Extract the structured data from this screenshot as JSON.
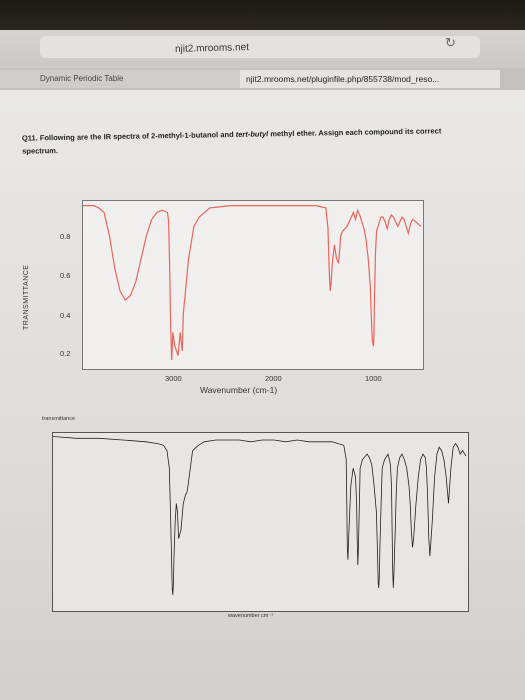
{
  "browser": {
    "host": "njit2.mrooms.net",
    "tabs": [
      {
        "label": "Dynamic Periodic Table"
      },
      {
        "label": "njit2.mrooms.net/pluginfile.php/855738/mod_reso..."
      }
    ]
  },
  "question": {
    "prefix": "Q11. Following are the IR spectra of ",
    "compound1": "2-methyl-1-butanol",
    "middle": " and ",
    "compound2": "tert-butyl",
    "suffix": " methyl ether. Assign each compound its correct spectrum."
  },
  "chart_data": [
    {
      "type": "line",
      "ylabel": "TRANSMITTANCE",
      "xlabel": "Wavenumber (cm-1)",
      "yticks": [
        "0.8",
        "0.6",
        "0.4",
        "0.2"
      ],
      "xticks": [
        "3000",
        "2000",
        "1000"
      ],
      "xlim": [
        3800,
        600
      ],
      "ylim": [
        0.15,
        0.87
      ],
      "colors": {
        "line": "#e8665c"
      },
      "series": [
        {
          "x": [
            3800,
            3700,
            3650,
            3600,
            3550,
            3500,
            3450,
            3400,
            3350,
            3300,
            3250,
            3200,
            3150,
            3100,
            3050,
            3000,
            2990,
            2980,
            2970,
            2960,
            2950,
            2930,
            2900,
            2880,
            2860,
            2850,
            2800,
            2750,
            2700,
            2600,
            2400,
            2200,
            2000,
            1800,
            1600,
            1500,
            1480,
            1470,
            1460,
            1450,
            1440,
            1420,
            1400,
            1380,
            1370,
            1360,
            1340,
            1300,
            1260,
            1240,
            1220,
            1200,
            1180,
            1160,
            1140,
            1120,
            1100,
            1080,
            1070,
            1060,
            1050,
            1045,
            1040,
            1030,
            1020,
            1000,
            980,
            960,
            940,
            920,
            900,
            880,
            860,
            840,
            820,
            800,
            780,
            760,
            740,
            720,
            700,
            680,
            650,
            600
          ],
          "y": [
            0.85,
            0.85,
            0.84,
            0.82,
            0.72,
            0.58,
            0.48,
            0.44,
            0.46,
            0.52,
            0.62,
            0.72,
            0.79,
            0.82,
            0.83,
            0.82,
            0.78,
            0.6,
            0.32,
            0.18,
            0.3,
            0.24,
            0.2,
            0.3,
            0.22,
            0.38,
            0.62,
            0.76,
            0.8,
            0.84,
            0.85,
            0.85,
            0.85,
            0.85,
            0.85,
            0.84,
            0.75,
            0.58,
            0.48,
            0.52,
            0.6,
            0.68,
            0.62,
            0.6,
            0.66,
            0.72,
            0.74,
            0.76,
            0.8,
            0.82,
            0.79,
            0.83,
            0.81,
            0.78,
            0.75,
            0.7,
            0.62,
            0.5,
            0.36,
            0.26,
            0.24,
            0.3,
            0.46,
            0.66,
            0.74,
            0.77,
            0.8,
            0.8,
            0.78,
            0.75,
            0.79,
            0.81,
            0.8,
            0.78,
            0.76,
            0.78,
            0.8,
            0.79,
            0.76,
            0.73,
            0.77,
            0.79,
            0.78,
            0.76
          ]
        }
      ]
    },
    {
      "type": "line",
      "ylabel": "transmittance",
      "xlabel": "wavenumber cm⁻¹",
      "xlim": [
        4000,
        450
      ],
      "ylim": [
        0,
        100
      ],
      "colors": {
        "line": "#222222"
      },
      "series": [
        {
          "x": [
            4000,
            3800,
            3600,
            3400,
            3200,
            3100,
            3050,
            3020,
            3000,
            2990,
            2980,
            2975,
            2970,
            2965,
            2960,
            2950,
            2940,
            2930,
            2920,
            2900,
            2880,
            2860,
            2850,
            2840,
            2820,
            2800,
            2750,
            2700,
            2600,
            2500,
            2400,
            2300,
            2200,
            2100,
            2000,
            1900,
            1800,
            1700,
            1600,
            1550,
            1500,
            1480,
            1475,
            1470,
            1465,
            1460,
            1450,
            1440,
            1420,
            1400,
            1390,
            1385,
            1380,
            1375,
            1370,
            1365,
            1360,
            1340,
            1300,
            1280,
            1260,
            1240,
            1220,
            1210,
            1205,
            1200,
            1195,
            1190,
            1180,
            1170,
            1150,
            1120,
            1100,
            1090,
            1085,
            1080,
            1075,
            1070,
            1060,
            1050,
            1040,
            1020,
            1000,
            980,
            960,
            940,
            930,
            920,
            910,
            900,
            880,
            860,
            840,
            820,
            800,
            790,
            780,
            770,
            760,
            740,
            720,
            700,
            680,
            660,
            640,
            620,
            600,
            580,
            560,
            540,
            520,
            500,
            480,
            460,
            450
          ],
          "y": [
            98,
            97,
            97,
            96,
            95,
            94,
            93,
            90,
            80,
            55,
            25,
            12,
            8,
            14,
            30,
            50,
            60,
            55,
            40,
            45,
            60,
            65,
            66,
            70,
            80,
            90,
            93,
            95,
            96,
            96,
            96,
            95,
            96,
            96,
            95,
            96,
            95,
            95,
            95,
            94,
            93,
            85,
            60,
            35,
            28,
            38,
            55,
            70,
            80,
            75,
            60,
            40,
            25,
            35,
            50,
            65,
            80,
            85,
            88,
            86,
            82,
            70,
            55,
            30,
            15,
            12,
            18,
            35,
            60,
            80,
            85,
            88,
            82,
            70,
            45,
            22,
            12,
            20,
            40,
            65,
            80,
            86,
            88,
            85,
            80,
            70,
            60,
            45,
            35,
            40,
            60,
            75,
            85,
            88,
            86,
            80,
            65,
            40,
            30,
            50,
            75,
            88,
            92,
            90,
            85,
            75,
            60,
            80,
            92,
            94,
            92,
            88,
            90,
            88,
            87
          ]
        }
      ]
    }
  ]
}
